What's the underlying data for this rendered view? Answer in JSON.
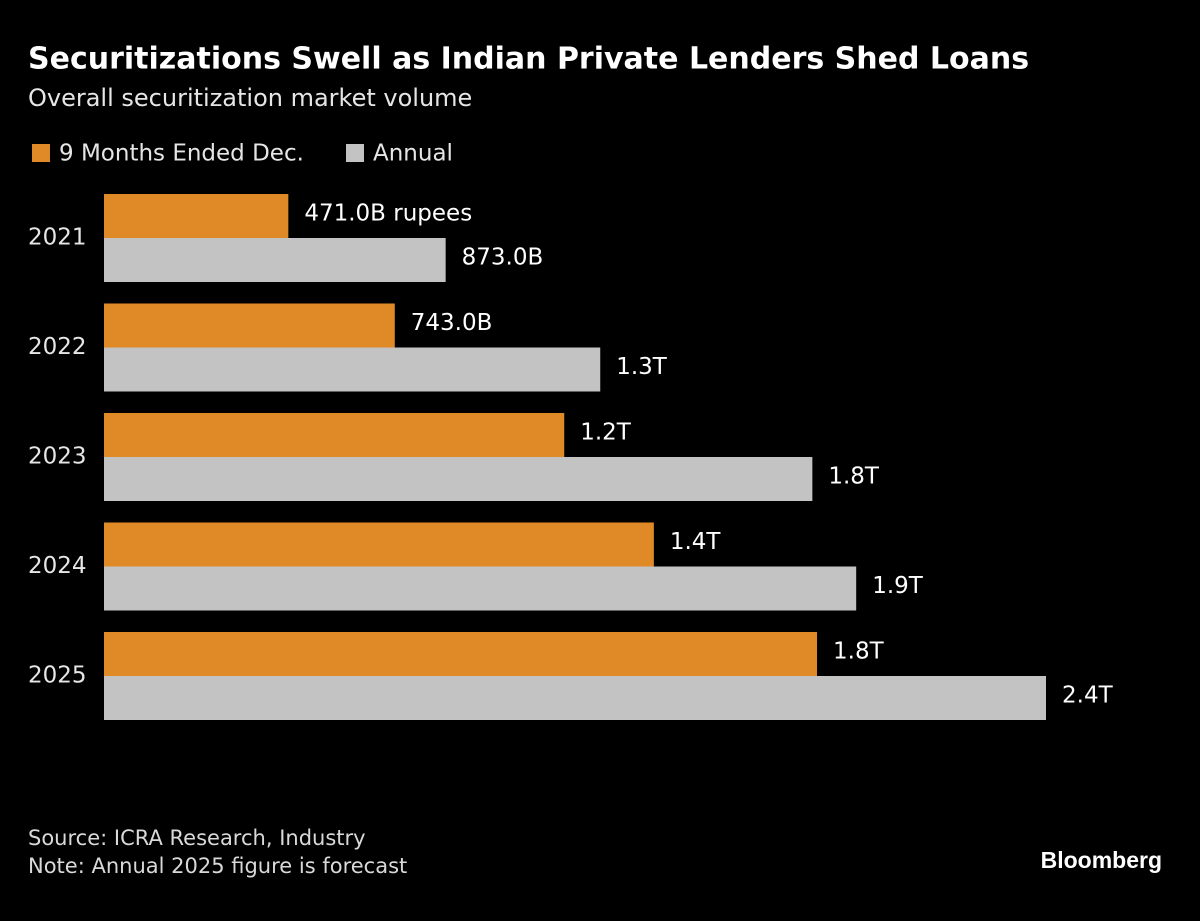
{
  "chart_data": {
    "type": "bar",
    "orientation": "horizontal",
    "title": "Securitizations Swell as Indian Private Lenders Shed Loans",
    "subtitle": "Overall securitization market volume",
    "categories": [
      "2021",
      "2022",
      "2023",
      "2024",
      "2025"
    ],
    "series": [
      {
        "name": "9 Months Ended Dec.",
        "color": "#df8a26",
        "values": [
          471000000000,
          743000000000,
          1176000000000,
          1405000000000,
          1822000000000
        ],
        "value_labels": [
          "471.0B rupees",
          "743.0B",
          "1.2T",
          "1.4T",
          "1.8T"
        ]
      },
      {
        "name": "Annual",
        "color": "#c3c3c3",
        "values": [
          873000000000,
          1268000000000,
          1810000000000,
          1922000000000,
          2407000000000
        ],
        "value_labels": [
          "873.0B",
          "1.3T",
          "1.8T",
          "1.9T",
          "2.4T"
        ]
      }
    ],
    "source": "Source: ICRA Research, Industry",
    "note": "Note: Annual 2025 figure is forecast",
    "brand": "Bloomberg"
  }
}
